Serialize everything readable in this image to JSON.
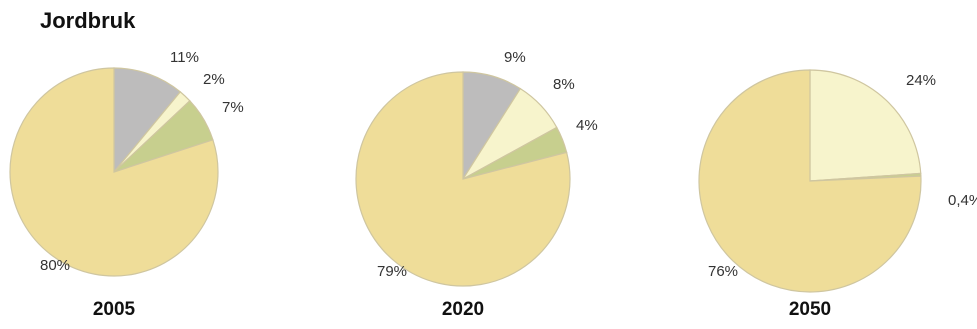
{
  "title": "Jordbruk",
  "colors": {
    "gray": "#bdbcbc",
    "cream": "#f7f4cc",
    "green": "#c7cf8e",
    "sand": "#efdd99",
    "stroke": "#cfc6a0"
  },
  "chart_data": [
    {
      "type": "pie",
      "title": "2005",
      "series": [
        {
          "value": 11,
          "label": "11%",
          "color": "#bdbcbc"
        },
        {
          "value": 2,
          "label": "2%",
          "color": "#f7f4cc"
        },
        {
          "value": 7,
          "label": "7%",
          "color": "#c7cf8e"
        },
        {
          "value": 80,
          "label": "80%",
          "color": "#efdd99"
        }
      ]
    },
    {
      "type": "pie",
      "title": "2020",
      "series": [
        {
          "value": 9,
          "label": "9%",
          "color": "#bdbcbc"
        },
        {
          "value": 8,
          "label": "8%",
          "color": "#f7f4cc"
        },
        {
          "value": 4,
          "label": "4%",
          "color": "#c7cf8e"
        },
        {
          "value": 79,
          "label": "79%",
          "color": "#efdd99"
        }
      ]
    },
    {
      "type": "pie",
      "title": "2050",
      "series": [
        {
          "value": 24,
          "label": "24%",
          "color": "#f7f4cc"
        },
        {
          "value": 0.4,
          "label": "0,4%",
          "color": "#c7cf8e"
        },
        {
          "value": 76,
          "label": "76%",
          "color": "#efdd99"
        }
      ]
    }
  ]
}
